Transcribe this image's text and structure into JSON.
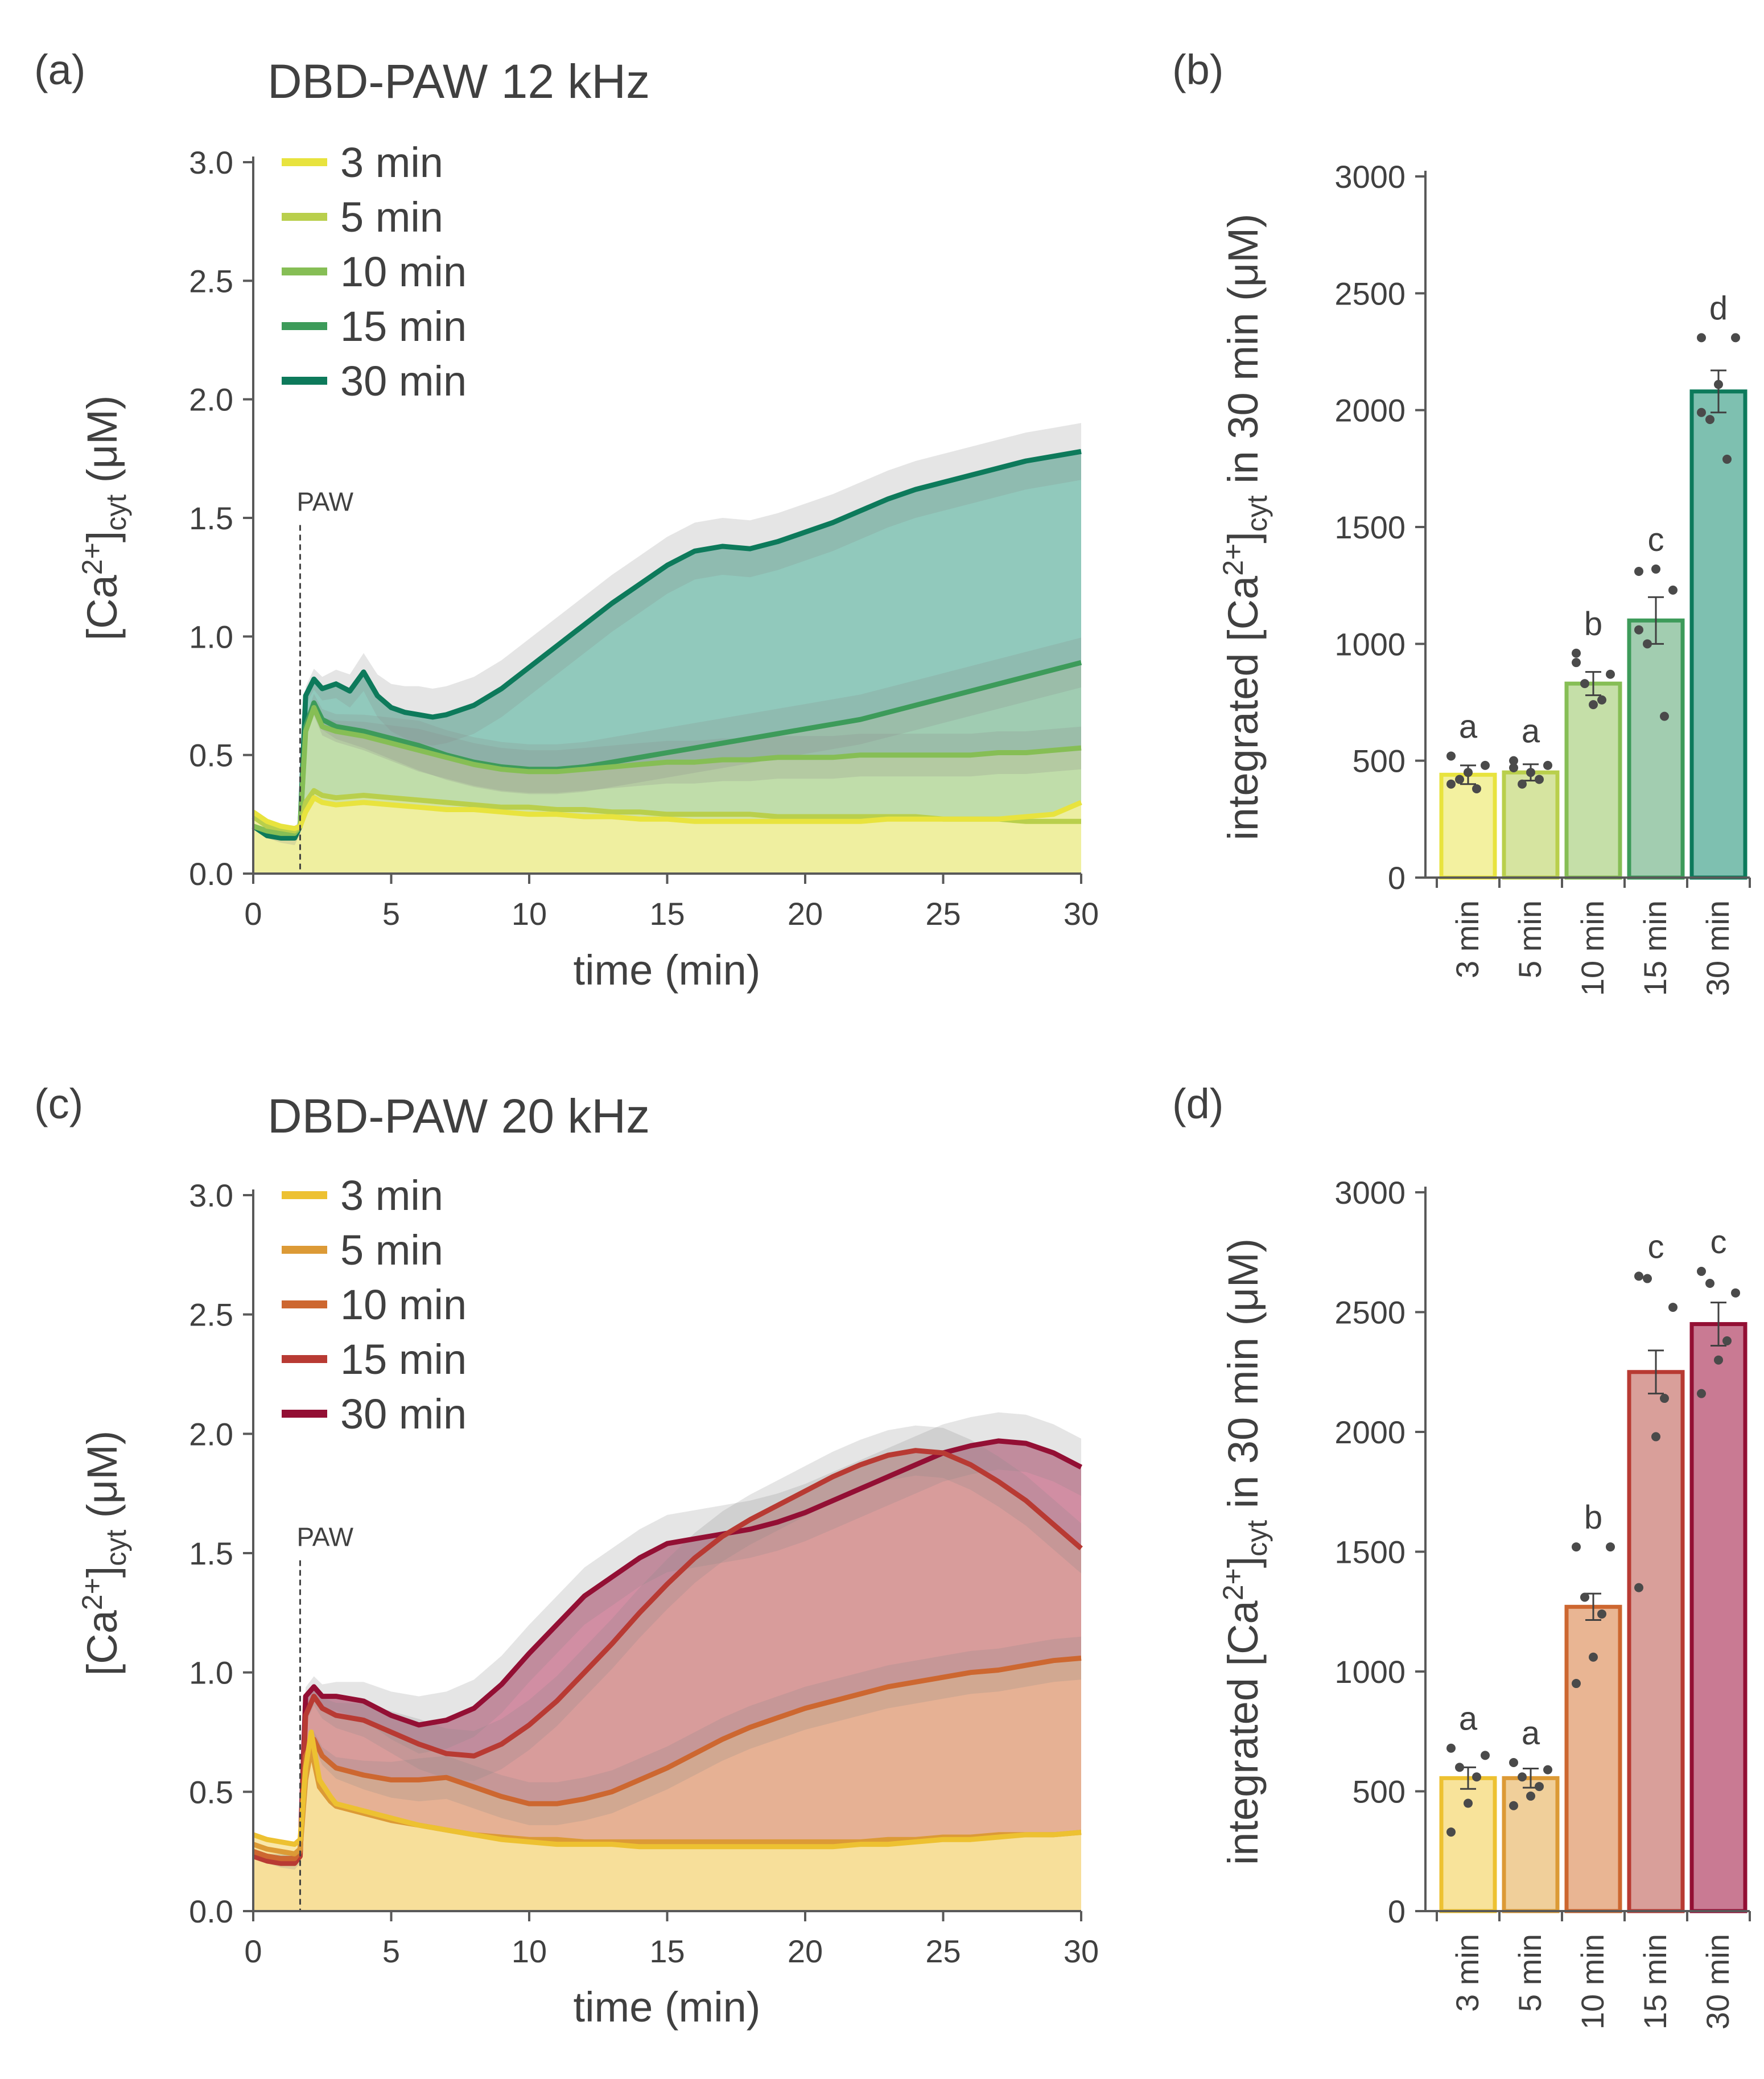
{
  "chart_data": [
    {
      "panel": "(a)",
      "type": "line",
      "title": "DBD-PAW 12 kHz",
      "xlabel": "time (min)",
      "ylabel_parts": [
        "[Ca",
        "2+",
        "]",
        "cyt",
        " (μM)"
      ],
      "xlim": [
        0,
        30
      ],
      "ylim": [
        0,
        3.0
      ],
      "x_ticks": [
        "0",
        "5",
        "10",
        "15",
        "20",
        "25",
        "30"
      ],
      "y_ticks": [
        "0.0",
        "0.5",
        "1.0",
        "1.5",
        "2.0",
        "2.5",
        "3.0"
      ],
      "annotation": {
        "text": "PAW",
        "x": 1.7
      },
      "legend": "top-left",
      "series": [
        {
          "name": "3 min",
          "color": "#e8e33e",
          "fill": "#f3f1a0",
          "x": [
            0,
            0.5,
            1,
            1.5,
            1.7,
            1.9,
            2.2,
            2.5,
            3,
            4,
            5,
            6,
            7,
            8,
            9,
            10,
            11,
            12,
            13,
            14,
            15,
            16,
            17,
            18,
            19,
            20,
            21,
            22,
            23,
            24,
            25,
            26,
            27,
            28,
            29,
            30
          ],
          "y": [
            0.26,
            0.22,
            0.2,
            0.19,
            0.2,
            0.26,
            0.32,
            0.3,
            0.29,
            0.3,
            0.29,
            0.28,
            0.27,
            0.27,
            0.26,
            0.25,
            0.25,
            0.24,
            0.24,
            0.23,
            0.23,
            0.22,
            0.22,
            0.22,
            0.22,
            0.22,
            0.22,
            0.22,
            0.23,
            0.23,
            0.23,
            0.23,
            0.23,
            0.24,
            0.25,
            0.3
          ]
        },
        {
          "name": "5 min",
          "color": "#b9cf4c",
          "fill": "#d6e4a0",
          "x": [
            0,
            0.5,
            1,
            1.5,
            1.7,
            1.9,
            2.2,
            2.5,
            3,
            4,
            5,
            6,
            7,
            8,
            9,
            10,
            11,
            12,
            13,
            14,
            15,
            16,
            17,
            18,
            19,
            20,
            21,
            22,
            23,
            24,
            25,
            26,
            27,
            28,
            29,
            30
          ],
          "y": [
            0.24,
            0.2,
            0.19,
            0.18,
            0.2,
            0.3,
            0.35,
            0.33,
            0.32,
            0.33,
            0.32,
            0.31,
            0.3,
            0.29,
            0.28,
            0.28,
            0.27,
            0.27,
            0.26,
            0.26,
            0.25,
            0.25,
            0.25,
            0.25,
            0.24,
            0.24,
            0.24,
            0.24,
            0.24,
            0.24,
            0.23,
            0.23,
            0.23,
            0.22,
            0.22,
            0.22
          ]
        },
        {
          "name": "10 min",
          "color": "#86be55",
          "fill": "#c5dfa8",
          "x": [
            0,
            0.5,
            1,
            1.5,
            1.7,
            1.9,
            2.2,
            2.5,
            3,
            4,
            5,
            6,
            7,
            8,
            9,
            10,
            11,
            12,
            13,
            14,
            15,
            16,
            17,
            18,
            19,
            20,
            21,
            22,
            23,
            24,
            25,
            26,
            27,
            28,
            29,
            30
          ],
          "y": [
            0.2,
            0.18,
            0.17,
            0.17,
            0.2,
            0.6,
            0.7,
            0.62,
            0.6,
            0.58,
            0.55,
            0.52,
            0.49,
            0.46,
            0.44,
            0.43,
            0.43,
            0.44,
            0.45,
            0.46,
            0.47,
            0.47,
            0.48,
            0.48,
            0.49,
            0.49,
            0.49,
            0.5,
            0.5,
            0.5,
            0.5,
            0.5,
            0.51,
            0.51,
            0.52,
            0.53
          ]
        },
        {
          "name": "15 min",
          "color": "#3d9b5a",
          "fill": "#a2cdb0",
          "x": [
            0,
            0.5,
            1,
            1.5,
            1.7,
            1.9,
            2.2,
            2.5,
            3,
            4,
            5,
            6,
            7,
            8,
            9,
            10,
            11,
            12,
            13,
            14,
            15,
            16,
            17,
            18,
            19,
            20,
            21,
            22,
            23,
            24,
            25,
            26,
            27,
            28,
            29,
            30
          ],
          "y": [
            0.2,
            0.18,
            0.17,
            0.17,
            0.2,
            0.62,
            0.72,
            0.65,
            0.62,
            0.6,
            0.57,
            0.54,
            0.5,
            0.47,
            0.45,
            0.44,
            0.44,
            0.45,
            0.47,
            0.49,
            0.51,
            0.53,
            0.55,
            0.57,
            0.59,
            0.61,
            0.63,
            0.65,
            0.68,
            0.71,
            0.74,
            0.77,
            0.8,
            0.83,
            0.86,
            0.89
          ]
        },
        {
          "name": "30 min",
          "color": "#0d7a5b",
          "fill": "#7ec0b0",
          "x": [
            0,
            0.5,
            1,
            1.5,
            1.7,
            1.9,
            2.2,
            2.5,
            3,
            3.5,
            4,
            4.5,
            5,
            5.5,
            6,
            6.5,
            7,
            7.5,
            8,
            9,
            10,
            11,
            12,
            13,
            14,
            15,
            16,
            17,
            18,
            19,
            20,
            21,
            22,
            23,
            24,
            25,
            26,
            27,
            28,
            29,
            30
          ],
          "y": [
            0.2,
            0.16,
            0.15,
            0.15,
            0.2,
            0.75,
            0.82,
            0.78,
            0.8,
            0.77,
            0.85,
            0.75,
            0.7,
            0.68,
            0.67,
            0.66,
            0.67,
            0.69,
            0.71,
            0.78,
            0.87,
            0.96,
            1.05,
            1.14,
            1.22,
            1.3,
            1.36,
            1.38,
            1.37,
            1.4,
            1.44,
            1.48,
            1.53,
            1.58,
            1.62,
            1.65,
            1.68,
            1.71,
            1.74,
            1.76,
            1.78
          ]
        }
      ]
    },
    {
      "panel": "(b)",
      "type": "bar",
      "ylabel_parts": [
        "integrated [Ca",
        "2+",
        "]",
        "cyt",
        " in 30 min (μM)"
      ],
      "categories": [
        "3 min",
        "5 min",
        "10 min",
        "15 min",
        "30 min"
      ],
      "values": [
        440,
        450,
        830,
        1100,
        2080
      ],
      "errors": [
        40,
        35,
        50,
        100,
        90
      ],
      "letters": [
        "a",
        "a",
        "b",
        "c",
        "d"
      ],
      "colors": [
        "#e8e33e",
        "#b9cf4c",
        "#86be55",
        "#3d9b5a",
        "#0d7a5b"
      ],
      "fills": [
        "#f3f1a0",
        "#d6e4a0",
        "#c5dfa8",
        "#a2cdb0",
        "#7ec0b0"
      ],
      "points": [
        [
          520,
          480,
          420,
          380,
          450,
          400
        ],
        [
          500,
          480,
          400,
          420,
          450,
          470
        ],
        [
          920,
          870,
          830,
          760,
          740,
          960
        ],
        [
          1310,
          1230,
          1000,
          690,
          1320,
          1060
        ],
        [
          2310,
          2310,
          1960,
          1790,
          2110,
          1990
        ]
      ],
      "ylim": [
        0,
        3000
      ],
      "y_ticks": [
        "0",
        "500",
        "1000",
        "1500",
        "2000",
        "2500",
        "3000"
      ]
    },
    {
      "panel": "(c)",
      "type": "line",
      "title": "DBD-PAW 20 kHz",
      "xlabel": "time (min)",
      "ylabel_parts": [
        "[Ca",
        "2+",
        "]",
        "cyt",
        " (μM)"
      ],
      "xlim": [
        0,
        30
      ],
      "ylim": [
        0,
        3.0
      ],
      "x_ticks": [
        "0",
        "5",
        "10",
        "15",
        "20",
        "25",
        "30"
      ],
      "y_ticks": [
        "0.0",
        "0.5",
        "1.0",
        "1.5",
        "2.0",
        "2.5",
        "3.0"
      ],
      "annotation": {
        "text": "PAW",
        "x": 1.7
      },
      "legend": "top-left",
      "series": [
        {
          "name": "3 min",
          "color": "#edc131",
          "fill": "#f8e39a",
          "x": [
            0,
            0.5,
            1,
            1.5,
            1.7,
            1.9,
            2.1,
            2.4,
            2.8,
            3,
            4,
            5,
            6,
            7,
            8,
            9,
            10,
            11,
            12,
            13,
            14,
            15,
            16,
            17,
            18,
            19,
            20,
            21,
            22,
            23,
            24,
            25,
            26,
            27,
            28,
            29,
            30
          ],
          "y": [
            0.32,
            0.3,
            0.29,
            0.28,
            0.3,
            0.6,
            0.75,
            0.55,
            0.48,
            0.45,
            0.42,
            0.39,
            0.36,
            0.34,
            0.32,
            0.3,
            0.29,
            0.28,
            0.28,
            0.28,
            0.27,
            0.27,
            0.27,
            0.27,
            0.27,
            0.27,
            0.27,
            0.27,
            0.28,
            0.28,
            0.29,
            0.3,
            0.3,
            0.31,
            0.32,
            0.32,
            0.33
          ]
        },
        {
          "name": "5 min",
          "color": "#dc9a36",
          "fill": "#f0cf9a",
          "x": [
            0,
            0.5,
            1,
            1.5,
            1.7,
            1.9,
            2.1,
            2.4,
            2.8,
            3,
            4,
            5,
            6,
            7,
            8,
            9,
            10,
            11,
            12,
            13,
            14,
            15,
            16,
            17,
            18,
            19,
            20,
            21,
            22,
            23,
            24,
            25,
            26,
            27,
            28,
            29,
            30
          ],
          "y": [
            0.28,
            0.26,
            0.25,
            0.24,
            0.26,
            0.55,
            0.68,
            0.52,
            0.46,
            0.44,
            0.41,
            0.38,
            0.36,
            0.34,
            0.32,
            0.31,
            0.3,
            0.3,
            0.29,
            0.29,
            0.29,
            0.29,
            0.29,
            0.29,
            0.29,
            0.29,
            0.29,
            0.29,
            0.29,
            0.3,
            0.3,
            0.31,
            0.31,
            0.32,
            0.32,
            0.32,
            0.33
          ]
        },
        {
          "name": "10 min",
          "color": "#cd6730",
          "fill": "#e9b593",
          "x": [
            0,
            0.5,
            1,
            1.5,
            1.7,
            1.9,
            2.2,
            2.5,
            3,
            4,
            5,
            6,
            7,
            8,
            9,
            10,
            11,
            12,
            13,
            14,
            15,
            16,
            17,
            18,
            19,
            20,
            21,
            22,
            23,
            24,
            25,
            26,
            27,
            28,
            29,
            30
          ],
          "y": [
            0.25,
            0.23,
            0.22,
            0.22,
            0.25,
            0.65,
            0.72,
            0.65,
            0.6,
            0.57,
            0.55,
            0.55,
            0.56,
            0.52,
            0.48,
            0.45,
            0.45,
            0.47,
            0.5,
            0.55,
            0.6,
            0.66,
            0.72,
            0.77,
            0.81,
            0.85,
            0.88,
            0.91,
            0.94,
            0.96,
            0.98,
            1.0,
            1.01,
            1.03,
            1.05,
            1.06
          ]
        },
        {
          "name": "15 min",
          "color": "#b83a33",
          "fill": "#d99f9a",
          "x": [
            0,
            0.5,
            1,
            1.5,
            1.7,
            1.9,
            2.2,
            2.5,
            3,
            4,
            5,
            6,
            7,
            8,
            9,
            10,
            11,
            12,
            13,
            14,
            15,
            16,
            17,
            18,
            19,
            20,
            21,
            22,
            23,
            24,
            25,
            26,
            27,
            28,
            29,
            30
          ],
          "y": [
            0.23,
            0.21,
            0.2,
            0.2,
            0.23,
            0.82,
            0.9,
            0.85,
            0.82,
            0.8,
            0.75,
            0.7,
            0.66,
            0.65,
            0.7,
            0.78,
            0.88,
            1.0,
            1.12,
            1.25,
            1.37,
            1.48,
            1.57,
            1.64,
            1.7,
            1.76,
            1.82,
            1.87,
            1.91,
            1.93,
            1.92,
            1.87,
            1.8,
            1.72,
            1.62,
            1.52
          ]
        },
        {
          "name": "30 min",
          "color": "#930f34",
          "fill": "#c97a93",
          "x": [
            0,
            0.5,
            1,
            1.5,
            1.7,
            1.9,
            2.2,
            2.5,
            3,
            4,
            5,
            6,
            7,
            8,
            9,
            10,
            11,
            12,
            13,
            14,
            15,
            16,
            17,
            18,
            19,
            20,
            21,
            22,
            23,
            24,
            25,
            26,
            27,
            28,
            29,
            30
          ],
          "y": [
            0.25,
            0.23,
            0.22,
            0.22,
            0.25,
            0.9,
            0.94,
            0.9,
            0.9,
            0.88,
            0.82,
            0.78,
            0.8,
            0.85,
            0.95,
            1.08,
            1.2,
            1.32,
            1.4,
            1.48,
            1.54,
            1.56,
            1.58,
            1.6,
            1.63,
            1.67,
            1.72,
            1.77,
            1.82,
            1.87,
            1.92,
            1.95,
            1.97,
            1.96,
            1.92,
            1.86
          ]
        }
      ]
    },
    {
      "panel": "(d)",
      "type": "bar",
      "ylabel_parts": [
        "integrated [Ca",
        "2+",
        "]",
        "cyt",
        " in 30 min (μM)"
      ],
      "categories": [
        "3 min",
        "5 min",
        "10 min",
        "15 min",
        "30 min"
      ],
      "values": [
        555,
        555,
        1270,
        2250,
        2450
      ],
      "errors": [
        45,
        40,
        55,
        90,
        90
      ],
      "letters": [
        "a",
        "a",
        "b",
        "c",
        "c"
      ],
      "colors": [
        "#edc131",
        "#dc9a36",
        "#cd6730",
        "#b83a33",
        "#930f34"
      ],
      "fills": [
        "#f8e39a",
        "#f0cf9a",
        "#e9b593",
        "#d99f9a",
        "#c97a93"
      ],
      "points": [
        [
          680,
          650,
          600,
          560,
          450,
          330
        ],
        [
          620,
          590,
          560,
          520,
          480,
          440
        ],
        [
          1520,
          1520,
          1310,
          1240,
          1060,
          950
        ],
        [
          2650,
          2520,
          2640,
          2140,
          1980,
          1350
        ],
        [
          2670,
          2580,
          2620,
          2380,
          2300,
          2160
        ]
      ],
      "ylim": [
        0,
        3000
      ],
      "y_ticks": [
        "0",
        "500",
        "1000",
        "1500",
        "2000",
        "2500",
        "3000"
      ]
    }
  ]
}
